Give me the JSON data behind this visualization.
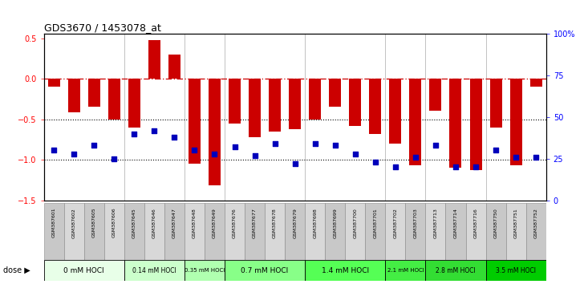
{
  "title": "GDS3670 / 1453078_at",
  "samples": [
    "GSM387601",
    "GSM387602",
    "GSM387605",
    "GSM387606",
    "GSM387645",
    "GSM387646",
    "GSM387647",
    "GSM387648",
    "GSM387649",
    "GSM387676",
    "GSM387677",
    "GSM387678",
    "GSM387679",
    "GSM387698",
    "GSM387699",
    "GSM387700",
    "GSM387701",
    "GSM387702",
    "GSM387703",
    "GSM387713",
    "GSM387714",
    "GSM387716",
    "GSM387750",
    "GSM387751",
    "GSM387752"
  ],
  "red_bars": [
    -0.1,
    -0.42,
    -0.35,
    -0.5,
    -0.6,
    0.48,
    0.3,
    -1.05,
    -1.32,
    -0.55,
    -0.72,
    -0.65,
    -0.62,
    -0.5,
    -0.35,
    -0.58,
    -0.68,
    -0.8,
    -1.07,
    -0.4,
    -1.1,
    -1.13,
    -0.6,
    -1.07,
    -0.1
  ],
  "blue_dots_pct": [
    30,
    28,
    33,
    25,
    40,
    42,
    38,
    30,
    28,
    32,
    27,
    34,
    22,
    34,
    33,
    28,
    23,
    20,
    26,
    33,
    20,
    20,
    30,
    26,
    26
  ],
  "dose_groups": [
    {
      "label": "0 mM HOCl",
      "start": 0,
      "end": 4,
      "color": "#e8ffe8"
    },
    {
      "label": "0.14 mM HOCl",
      "start": 4,
      "end": 7,
      "color": "#ccffcc"
    },
    {
      "label": "0.35 mM HOCl",
      "start": 7,
      "end": 9,
      "color": "#b0ffb0"
    },
    {
      "label": "0.7 mM HOCl",
      "start": 9,
      "end": 13,
      "color": "#88ff88"
    },
    {
      "label": "1.4 mM HOCl",
      "start": 13,
      "end": 17,
      "color": "#55ff55"
    },
    {
      "label": "2.1 mM HOCl",
      "start": 17,
      "end": 19,
      "color": "#44ee44"
    },
    {
      "label": "2.8 mM HOCl",
      "start": 19,
      "end": 22,
      "color": "#33dd33"
    },
    {
      "label": "3.5 mM HOCl",
      "start": 22,
      "end": 25,
      "color": "#00cc00"
    }
  ],
  "ylim": [
    -1.5,
    0.55
  ],
  "y2lim": [
    0,
    100
  ],
  "yticks": [
    -1.5,
    -1.0,
    -0.5,
    0.0,
    0.5
  ],
  "y2ticks": [
    0,
    25,
    50,
    75,
    100
  ],
  "hline_y": 0.0,
  "dotted_lines": [
    -0.5,
    -1.0
  ],
  "bar_color": "#cc0000",
  "dot_color": "#0000bb",
  "bar_width": 0.6,
  "sample_label_bg": "#d0d0d0",
  "spine_color": "#555555"
}
